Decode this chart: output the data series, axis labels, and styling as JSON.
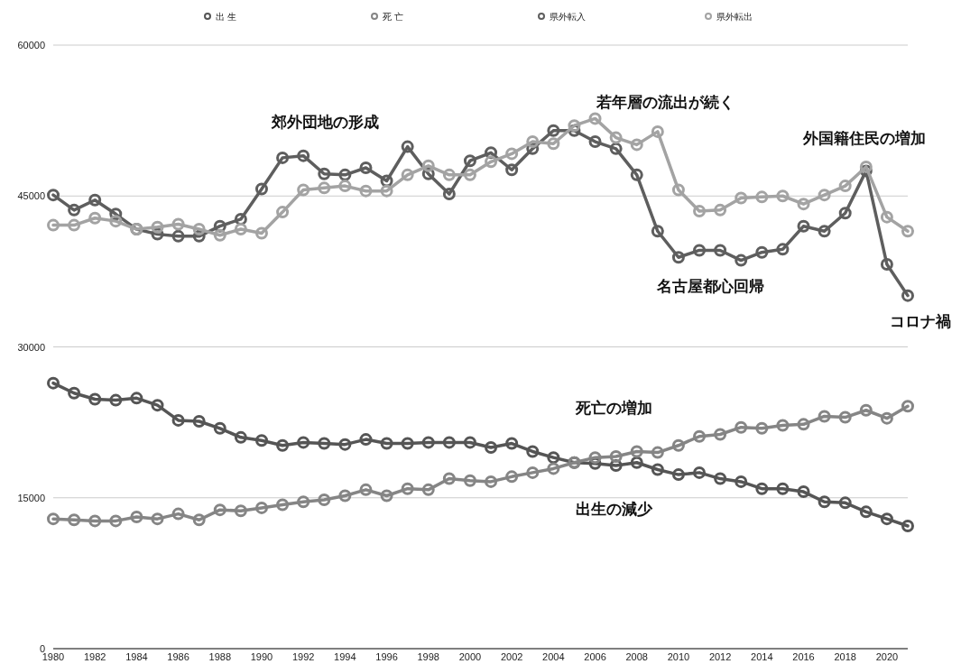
{
  "chart_data": {
    "type": "line",
    "x": [
      1980,
      1981,
      1982,
      1983,
      1984,
      1985,
      1986,
      1987,
      1988,
      1989,
      1990,
      1991,
      1992,
      1993,
      1994,
      1995,
      1996,
      1997,
      1998,
      1999,
      2000,
      2001,
      2002,
      2003,
      2004,
      2005,
      2006,
      2007,
      2008,
      2009,
      2010,
      2011,
      2012,
      2013,
      2014,
      2015,
      2016,
      2017,
      2018,
      2019,
      2020,
      2021
    ],
    "series": [
      {
        "name": "出 生",
        "color": "#555555",
        "values": [
          26400,
          25400,
          24800,
          24700,
          24900,
          24200,
          22700,
          22600,
          21900,
          21000,
          20700,
          20200,
          20500,
          20400,
          20300,
          20800,
          20400,
          20400,
          20500,
          20500,
          20500,
          20000,
          20400,
          19600,
          19000,
          18500,
          18400,
          18200,
          18500,
          17800,
          17300,
          17500,
          16900,
          16600,
          15900,
          15900,
          15600,
          14600,
          14500,
          13600,
          12900,
          12200
        ]
      },
      {
        "name": "死 亡",
        "color": "#858585",
        "values": [
          12900,
          12800,
          12700,
          12700,
          13100,
          12900,
          13400,
          12800,
          13800,
          13700,
          14000,
          14300,
          14600,
          14800,
          15200,
          15800,
          15200,
          15900,
          15800,
          16900,
          16700,
          16600,
          17100,
          17500,
          17900,
          18500,
          19000,
          19100,
          19600,
          19500,
          20200,
          21100,
          21300,
          22000,
          21900,
          22200,
          22300,
          23100,
          23000,
          23700,
          22900,
          24100
        ]
      },
      {
        "name": "県外転入",
        "color": "#5e5e5e",
        "values": [
          45100,
          43600,
          44600,
          43200,
          41700,
          41200,
          41000,
          41000,
          42000,
          42700,
          45700,
          48800,
          49000,
          47200,
          47100,
          47800,
          46500,
          49900,
          47200,
          45200,
          48500,
          49300,
          47600,
          49700,
          51500,
          51500,
          50400,
          49700,
          47100,
          41500,
          38900,
          39600,
          39600,
          38600,
          39400,
          39700,
          42000,
          41500,
          43300,
          47500,
          38200,
          35100
        ]
      },
      {
        "name": "県外転出",
        "color": "#a3a3a3",
        "values": [
          42100,
          42100,
          42800,
          42500,
          41700,
          41900,
          42200,
          41700,
          41100,
          41700,
          41300,
          43400,
          45600,
          45800,
          46000,
          45500,
          45500,
          47100,
          48000,
          47100,
          47100,
          48400,
          49200,
          50400,
          50200,
          52000,
          52700,
          50800,
          50100,
          51400,
          45600,
          43500,
          43600,
          44800,
          44900,
          45000,
          44200,
          45100,
          46000,
          47900,
          42900,
          41500
        ]
      }
    ],
    "xlim": [
      1980,
      2021
    ],
    "xticks": [
      1980,
      1982,
      1984,
      1986,
      1988,
      1990,
      1992,
      1994,
      1996,
      1998,
      2000,
      2002,
      2004,
      2006,
      2008,
      2010,
      2012,
      2014,
      2016,
      2018,
      2020
    ],
    "ylim": [
      0,
      60000
    ],
    "yticks": [
      0,
      15000,
      30000,
      45000,
      60000
    ],
    "grid": "y",
    "legend": "top",
    "marker": "circle",
    "line_style": "solid",
    "annotations": [
      "郊外団地の形成",
      "若年層の流出が続く",
      "外国籍住民の増加",
      "名古屋都心回帰",
      "コロナ禍",
      "死亡の増加",
      "出生の減少"
    ]
  }
}
